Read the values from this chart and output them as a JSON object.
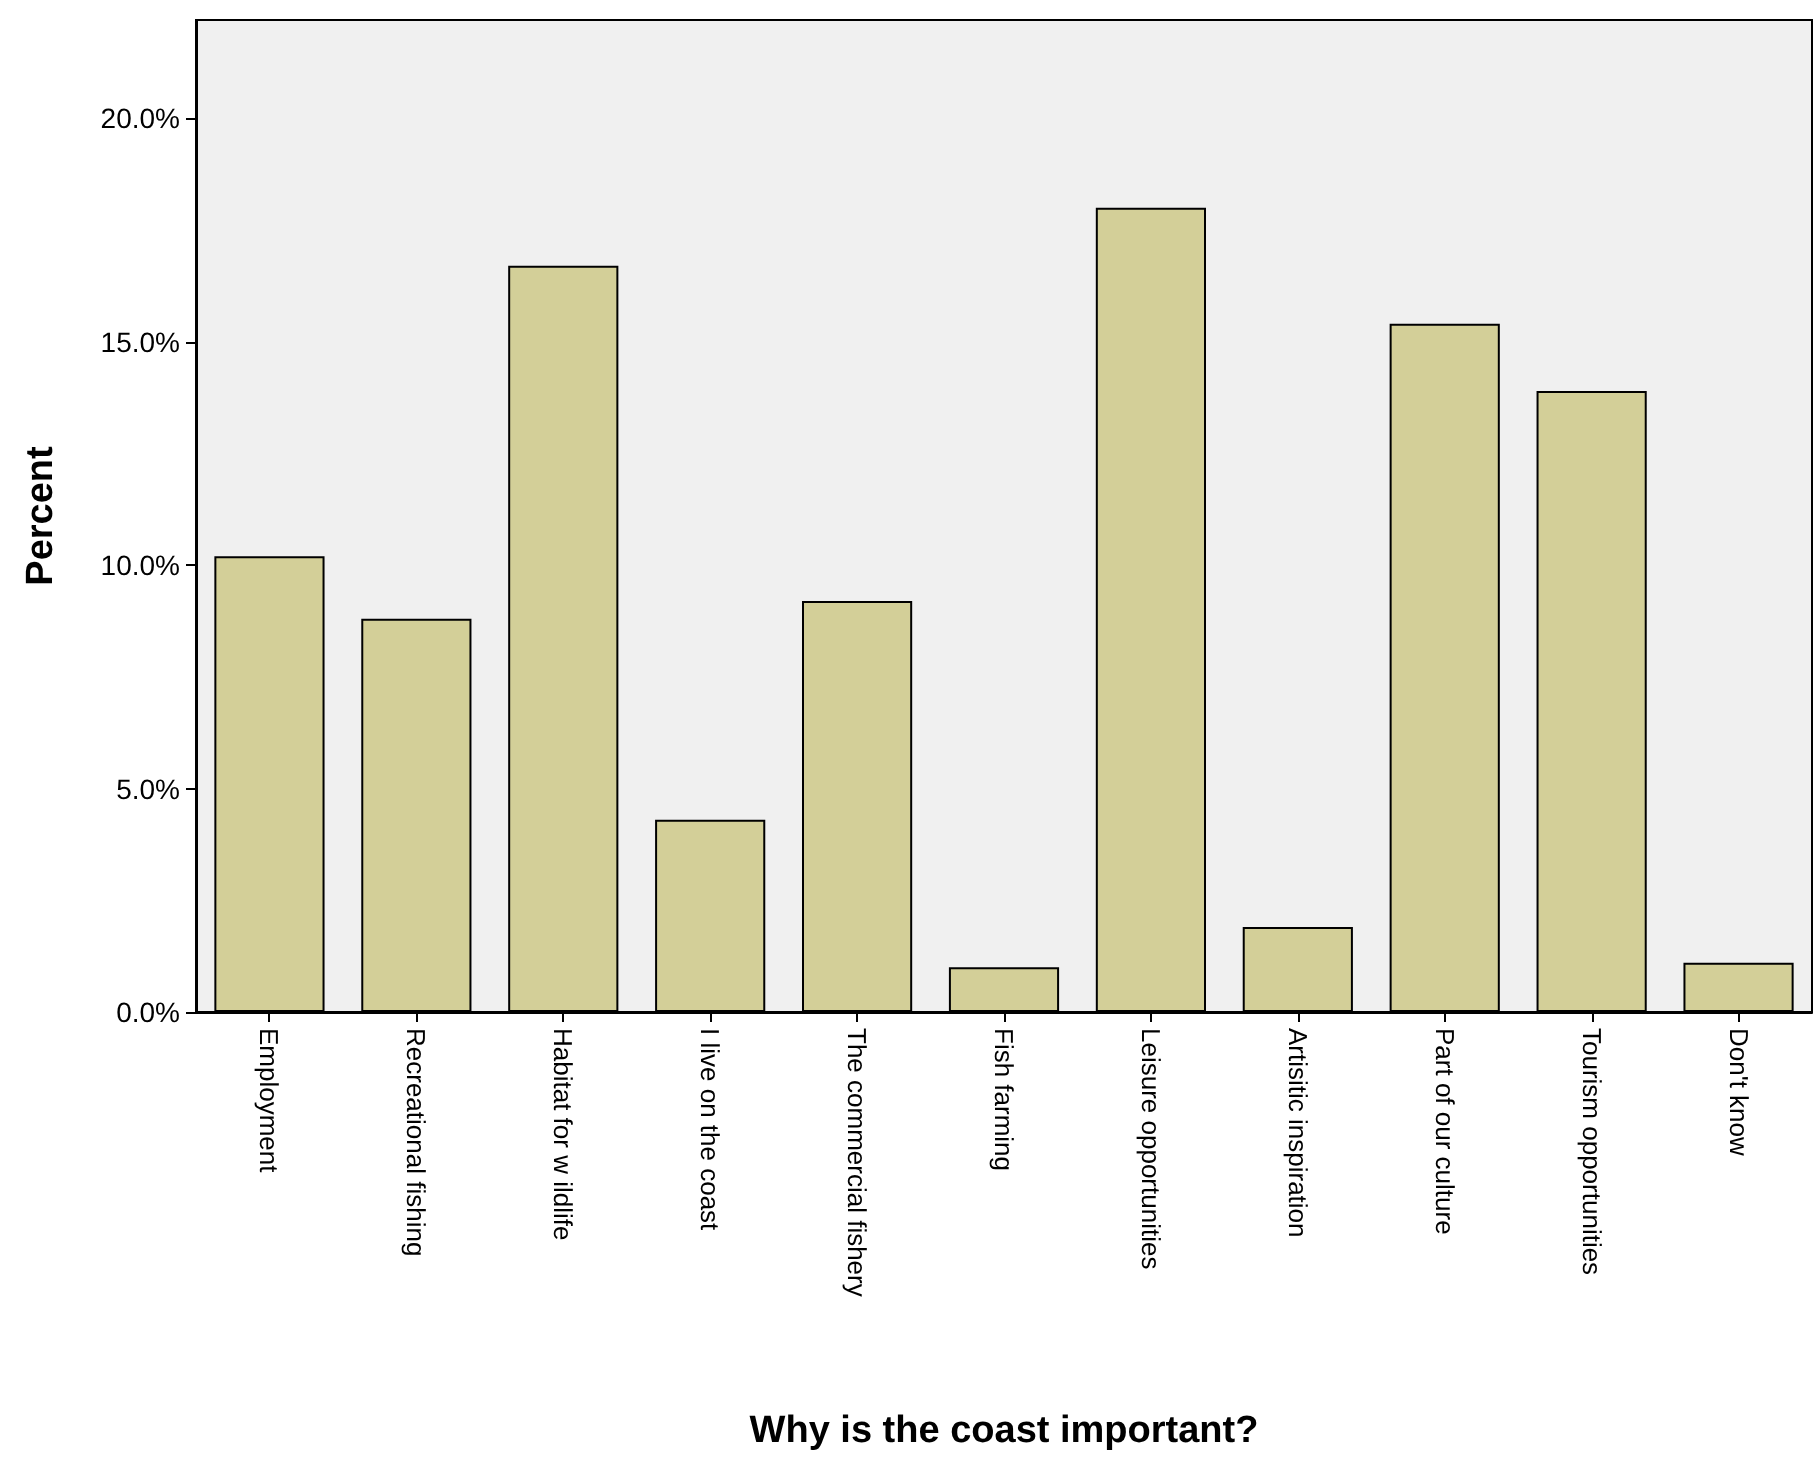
{
  "chart_data": {
    "type": "bar",
    "xlabel": "Why is the coast important?",
    "ylabel": "Percent",
    "categories": [
      "Employment",
      "Recreational fishing",
      "Habitat for w ildlife",
      "I live on the coast",
      "The commercial fishery",
      "Fish farming",
      "Leisure opportunities",
      "Artisitic inspiration",
      "Part of our culture",
      "Tourism opportunities",
      "Don't know"
    ],
    "values": [
      10.2,
      8.8,
      16.7,
      4.3,
      9.2,
      1.0,
      18.0,
      1.9,
      15.4,
      13.9,
      1.1
    ],
    "color": "#d3cf98",
    "ylim": [
      0,
      22.2
    ],
    "yticks": [
      {
        "value": 0,
        "label": "0.0%"
      },
      {
        "value": 5,
        "label": "5.0%"
      },
      {
        "value": 10,
        "label": "10.0%"
      },
      {
        "value": 15,
        "label": "15.0%"
      },
      {
        "value": 20,
        "label": "20.0%"
      }
    ],
    "grid": false
  }
}
